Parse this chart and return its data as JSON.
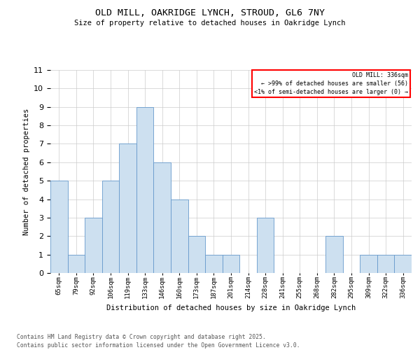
{
  "title1": "OLD MILL, OAKRIDGE LYNCH, STROUD, GL6 7NY",
  "title2": "Size of property relative to detached houses in Oakridge Lynch",
  "xlabel": "Distribution of detached houses by size in Oakridge Lynch",
  "ylabel": "Number of detached properties",
  "categories": [
    "65sqm",
    "79sqm",
    "92sqm",
    "106sqm",
    "119sqm",
    "133sqm",
    "146sqm",
    "160sqm",
    "173sqm",
    "187sqm",
    "201sqm",
    "214sqm",
    "228sqm",
    "241sqm",
    "255sqm",
    "268sqm",
    "282sqm",
    "295sqm",
    "309sqm",
    "322sqm",
    "336sqm"
  ],
  "values": [
    5,
    1,
    3,
    5,
    7,
    9,
    6,
    4,
    2,
    1,
    1,
    0,
    3,
    0,
    0,
    0,
    2,
    0,
    1,
    1,
    1
  ],
  "bar_color": "#cde0f0",
  "bar_edge_color": "#6699cc",
  "legend_title": "OLD MILL: 336sqm",
  "legend_line1": "← >99% of detached houses are smaller (56)",
  "legend_line2": "<1% of semi-detached houses are larger (0) →",
  "footer_line1": "Contains HM Land Registry data © Crown copyright and database right 2025.",
  "footer_line2": "Contains public sector information licensed under the Open Government Licence v3.0.",
  "ylim": [
    0,
    11
  ],
  "yticks": [
    0,
    1,
    2,
    3,
    4,
    5,
    6,
    7,
    8,
    9,
    10,
    11
  ],
  "bg_color": "#ffffff",
  "grid_color": "#cccccc"
}
